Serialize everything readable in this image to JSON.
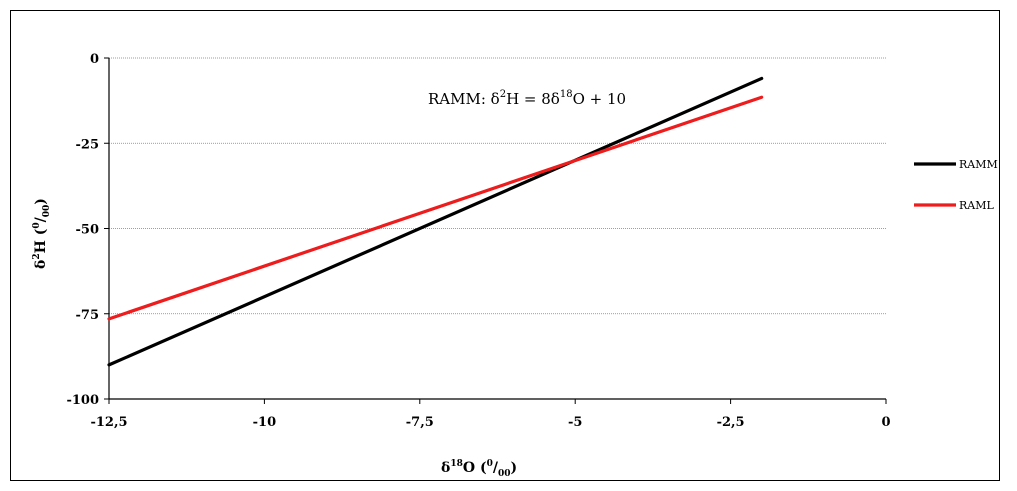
{
  "chart_data": {
    "type": "line",
    "xlabel_parts": {
      "delta": "δ",
      "sup": "18",
      "element": "O",
      "open": " (",
      "per_sup": "0",
      "slash": "/",
      "per_sub": "00",
      "close": ")"
    },
    "ylabel_parts": {
      "delta": "δ",
      "sup": "2",
      "element": "H",
      "open": " (",
      "per_sup": "0",
      "slash": "/",
      "per_sub": "00",
      "close": ")"
    },
    "xlim": [
      -12.5,
      0
    ],
    "ylim": [
      -100,
      0
    ],
    "x_ticks": [
      -12.5,
      -10,
      -7.5,
      -5,
      -2.5,
      0
    ],
    "x_tick_labels": [
      "-12,5",
      "-10",
      "-7,5",
      "-5",
      "-2,5",
      "0"
    ],
    "y_ticks": [
      0,
      -25,
      -50,
      -75,
      -100
    ],
    "y_tick_labels": [
      "0",
      "-25",
      "-50",
      "-75",
      "-100"
    ],
    "grid": "horizontal",
    "legend_position": "right",
    "annotation_parts": {
      "pre": "RAMM: δ",
      "sup1": "2",
      "mid": "H = 8δ",
      "sup2": "18",
      "post": "O + 10"
    },
    "series": [
      {
        "name": "RAMM",
        "color": "#000000",
        "x": [
          -12.5,
          -2
        ],
        "y": [
          -90,
          -6
        ]
      },
      {
        "name": "RAML",
        "color": "#ee1c1c",
        "x": [
          -12.5,
          -2
        ],
        "y": [
          -76.5,
          -11.5
        ]
      }
    ]
  }
}
